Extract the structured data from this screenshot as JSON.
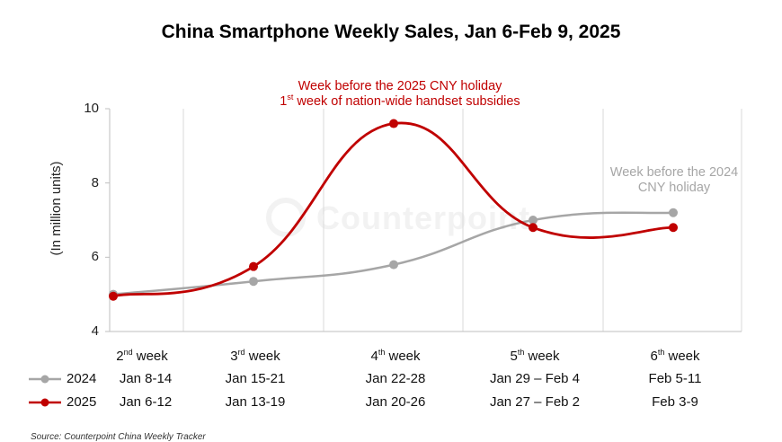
{
  "chart_data": {
    "type": "line",
    "title": "China Smartphone Weekly Sales, Jan 6-Feb 9, 2025",
    "ylabel": "(In million units)",
    "ylim": [
      4,
      10
    ],
    "yticks": [
      4,
      6,
      8,
      10
    ],
    "grid": "vertical",
    "week_labels": [
      "2nd week",
      "3rd week",
      "4th week",
      "5th week",
      "6th week"
    ],
    "categories": [
      "2nd week",
      "3rd week",
      "4th week",
      "5th week",
      "6th week"
    ],
    "series": [
      {
        "name": "2024",
        "color": "#a6a6a6",
        "dates": [
          "Jan 8-14",
          "Jan 15-21",
          "Jan 22-28",
          "Jan 29 – Feb 4",
          "Feb 5-11"
        ],
        "values": [
          5.0,
          5.35,
          5.8,
          7.0,
          7.2
        ]
      },
      {
        "name": "2025",
        "color": "#c00000",
        "dates": [
          "Jan 6-12",
          "Jan 13-19",
          "Jan 20-26",
          "Jan 27 – Feb 2",
          "Feb 3-9"
        ],
        "values": [
          4.95,
          5.75,
          9.6,
          6.8,
          6.8
        ]
      }
    ],
    "annotations": {
      "red_line1": "Week before the 2025 CNY holiday",
      "red_line2_sup": "st",
      "red_line2_a": "1",
      "red_line2_b": " week of nation-wide handset subsidies",
      "grey_line1": "Week before the 2024",
      "grey_line2": "CNY holiday"
    },
    "watermark": "Counterpoint",
    "source": "Source: Counterpoint China Weekly Tracker"
  }
}
